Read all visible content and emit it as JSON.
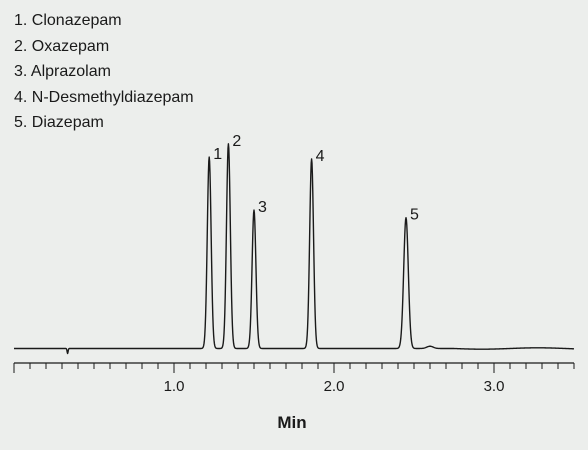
{
  "chart_data": {
    "type": "line",
    "title": "",
    "xlabel": "Min",
    "ylabel": "",
    "xlim": [
      0.0,
      3.5
    ],
    "ylim": [
      0,
      1.1
    ],
    "x_ticks": [
      1.0,
      2.0,
      3.0
    ],
    "x_tick_labels": [
      "1.0",
      "2.0",
      "3.0"
    ],
    "x_minor_tick_step": 0.1,
    "grid": false,
    "legend_position": "top-left",
    "legend": [
      "1. Clonazepam",
      "2. Oxazepam",
      "3. Alprazolam",
      "4. N-Desmethyldiazepam",
      "5. Diazepam"
    ],
    "peaks": [
      {
        "label": "1",
        "retention_time": 1.22,
        "height": 1.01
      },
      {
        "label": "2",
        "retention_time": 1.34,
        "height": 1.08
      },
      {
        "label": "3",
        "retention_time": 1.5,
        "height": 0.73
      },
      {
        "label": "4",
        "retention_time": 1.86,
        "height": 1.0
      },
      {
        "label": "5",
        "retention_time": 2.45,
        "height": 0.69
      }
    ],
    "line_color": "#1a1a1a"
  }
}
